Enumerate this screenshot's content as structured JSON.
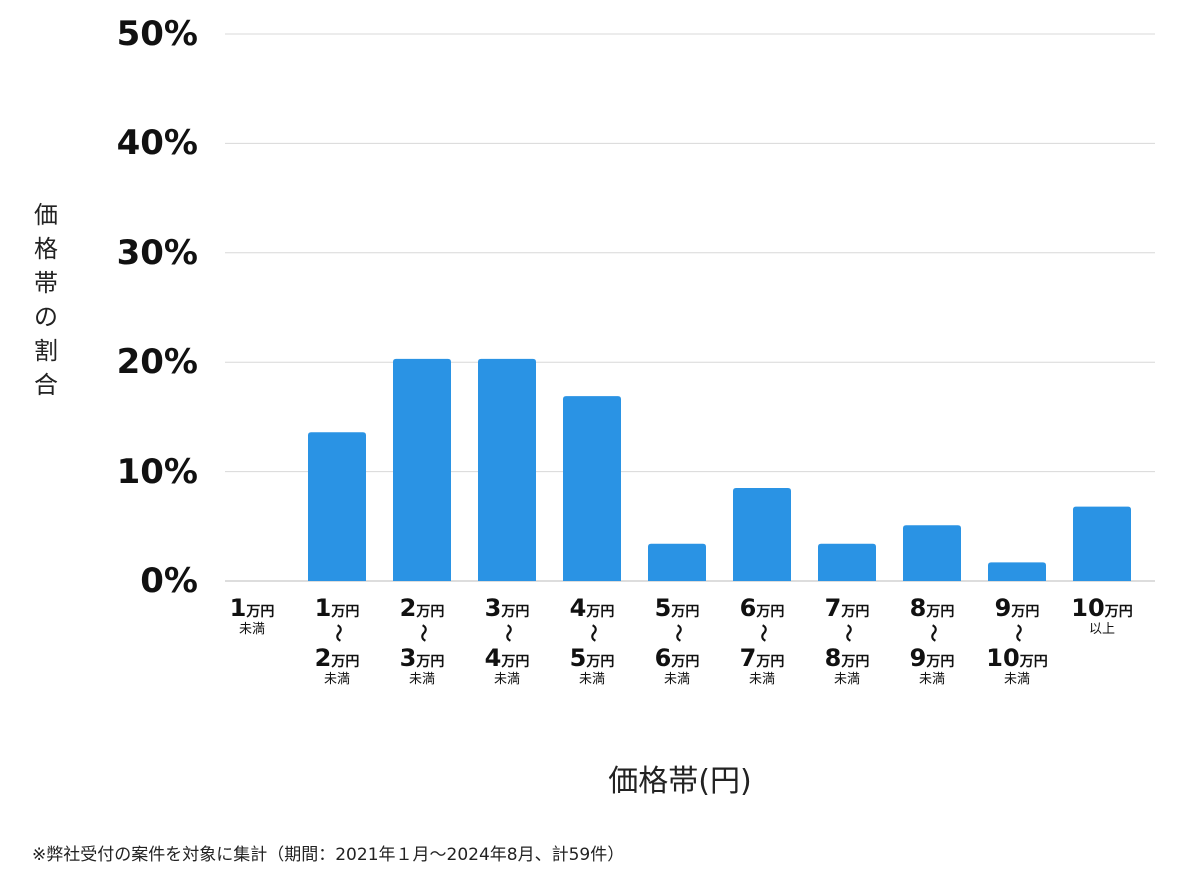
{
  "chart_data": {
    "type": "bar",
    "ylabel": "価格帯の割合",
    "xlabel": "価格帯(円)",
    "ylim": [
      0,
      50
    ],
    "yticks": [
      "0%",
      "10%",
      "20%",
      "30%",
      "40%",
      "50%"
    ],
    "grid": true,
    "color": "#2a93e4",
    "categories": [
      {
        "from": "1",
        "from_unit": "万円",
        "tilde": "",
        "to": "",
        "to_unit": "",
        "suffix": "未満"
      },
      {
        "from": "1",
        "from_unit": "万円",
        "tilde": "〜",
        "to": "2",
        "to_unit": "万円",
        "suffix": "未満"
      },
      {
        "from": "2",
        "from_unit": "万円",
        "tilde": "〜",
        "to": "3",
        "to_unit": "万円",
        "suffix": "未満"
      },
      {
        "from": "3",
        "from_unit": "万円",
        "tilde": "〜",
        "to": "4",
        "to_unit": "万円",
        "suffix": "未満"
      },
      {
        "from": "4",
        "from_unit": "万円",
        "tilde": "〜",
        "to": "5",
        "to_unit": "万円",
        "suffix": "未満"
      },
      {
        "from": "5",
        "from_unit": "万円",
        "tilde": "〜",
        "to": "6",
        "to_unit": "万円",
        "suffix": "未満"
      },
      {
        "from": "6",
        "from_unit": "万円",
        "tilde": "〜",
        "to": "7",
        "to_unit": "万円",
        "suffix": "未満"
      },
      {
        "from": "7",
        "from_unit": "万円",
        "tilde": "〜",
        "to": "8",
        "to_unit": "万円",
        "suffix": "未満"
      },
      {
        "from": "8",
        "from_unit": "万円",
        "tilde": "〜",
        "to": "9",
        "to_unit": "万円",
        "suffix": "未満"
      },
      {
        "from": "9",
        "from_unit": "万円",
        "tilde": "〜",
        "to": "10",
        "to_unit": "万円",
        "suffix": "未満"
      },
      {
        "from": "10",
        "from_unit": "万円",
        "tilde": "",
        "to": "",
        "to_unit": "",
        "suffix": "以上"
      }
    ],
    "values": [
      0,
      13.6,
      20.3,
      20.3,
      16.9,
      3.4,
      8.5,
      3.4,
      5.1,
      1.7,
      6.8
    ]
  },
  "footnote": "※弊社受付の案件を対象に集計（期間：2021年１月〜2024年8月、計59件）"
}
